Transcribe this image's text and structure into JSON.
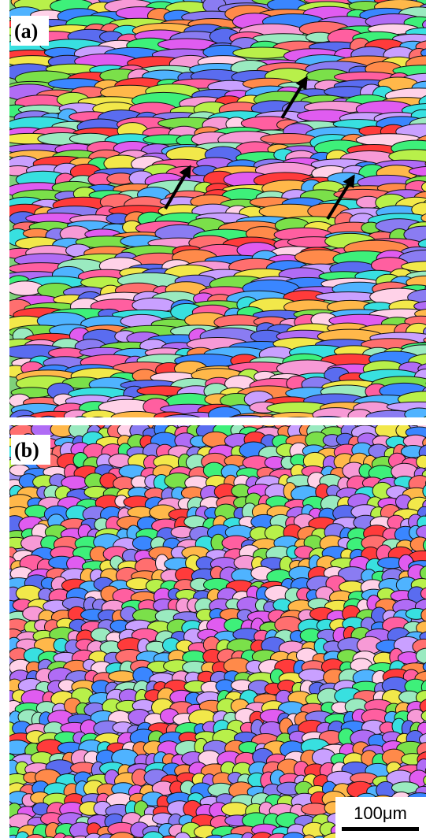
{
  "panels": [
    {
      "label": "(a)"
    },
    {
      "label": "(b)"
    }
  ],
  "scale_bar": "100μm"
}
